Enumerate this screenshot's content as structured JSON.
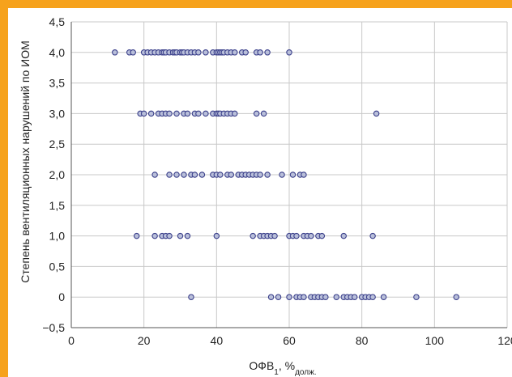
{
  "colors": {
    "border": "#f6a21c",
    "background": "#ffffff",
    "grid": "#c8c8c8",
    "axis": "#555555",
    "point_fill": "#b9bfda",
    "point_stroke": "#3a3f8a"
  },
  "chart_data": {
    "type": "scatter",
    "xlabel": "ОФВ",
    "xlabel_sub": "1",
    "xlabel_suffix": ", %",
    "xlabel_sub2": "долж.",
    "ylabel": "Степень вентиляционных нарушений по ИОМ",
    "xlim": [
      0,
      120
    ],
    "ylim": [
      -0.5,
      4.5
    ],
    "x_ticks": [
      "0",
      "20",
      "40",
      "60",
      "80",
      "100",
      "120"
    ],
    "y_ticks": [
      "−0,5",
      "0",
      "0,5",
      "1,0",
      "1,5",
      "2,0",
      "2,5",
      "3,0",
      "3,5",
      "4,0",
      "4,5"
    ],
    "grid": true,
    "groups": [
      {
        "y": 4.0,
        "x": [
          12,
          16,
          17,
          20,
          21,
          22,
          23,
          24,
          25,
          25.5,
          26,
          27,
          28,
          28.5,
          29,
          30,
          30.5,
          31,
          32,
          33,
          34,
          35,
          37,
          39,
          40,
          40.5,
          41,
          41.5,
          42,
          43,
          44,
          45,
          47,
          48,
          51,
          52,
          54,
          60
        ]
      },
      {
        "y": 3.0,
        "x": [
          19,
          20,
          22,
          24,
          25,
          26,
          27,
          29,
          31,
          32,
          34,
          35,
          37,
          39,
          40,
          40.5,
          41,
          42,
          43,
          44,
          45,
          51,
          53,
          84
        ]
      },
      {
        "y": 2.0,
        "x": [
          23,
          27,
          29,
          31,
          33,
          34,
          36,
          39,
          40,
          41,
          43,
          44,
          46,
          47,
          48,
          49,
          50,
          51,
          52,
          54,
          58,
          61,
          63,
          64
        ]
      },
      {
        "y": 1.0,
        "x": [
          18,
          23,
          25,
          26,
          27,
          30,
          32,
          40,
          50,
          52,
          53,
          54,
          55,
          56,
          60,
          61,
          62,
          64,
          65,
          66,
          68,
          69,
          75,
          83
        ]
      },
      {
        "y": 0.0,
        "x": [
          33,
          55,
          57,
          60,
          62,
          63,
          64,
          66,
          67,
          68,
          69,
          70,
          73,
          75,
          76,
          77,
          78,
          80,
          81,
          82,
          83,
          86,
          95,
          106
        ]
      }
    ]
  }
}
